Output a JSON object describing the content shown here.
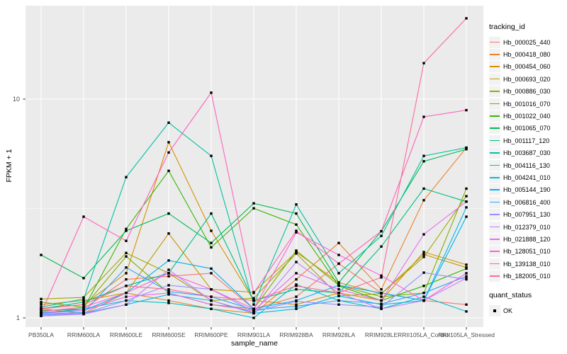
{
  "figure": {
    "x_axis_title": "sample_name",
    "y_axis_title": "FPKM + 1",
    "legend_tracking_title": "tracking_id",
    "legend_quant_title": "quant_status",
    "quant_items": [
      {
        "label": "OK",
        "marker": "black-square"
      }
    ]
  },
  "chart_data": {
    "type": "line",
    "title": "",
    "xlabel": "sample_name",
    "ylabel": "FPKM + 1",
    "x_type": "categorical",
    "y_scale": "log10",
    "ylim": [
      0.92,
      27
    ],
    "y_tick_values": [
      1,
      10
    ],
    "y_tick_labels": [
      "1",
      "10"
    ],
    "y_minor_gridlines": [
      3.162
    ],
    "grid": true,
    "panel_background": "#EBEBEB",
    "gridline_color": "#FFFFFF",
    "point_color": "#000000",
    "legend_position": "right",
    "categories": [
      "PB350LA",
      "RRIM600LA",
      "RRIM600LE",
      "RRIM600SE",
      "RRIM600PE",
      "RRIM901LA",
      "RRIM928BA",
      "RRIM928LA",
      "RRIM928LE",
      "RRII105LA_Control",
      "RRII105LA_Stressed"
    ],
    "series": [
      {
        "name": "Hb_000025_440",
        "color": "#F8766D",
        "values": [
          1.05,
          1.1,
          1.5,
          1.55,
          1.6,
          1.1,
          1.25,
          1.77,
          1.3,
          1.2,
          1.15
        ]
      },
      {
        "name": "Hb_000418_080",
        "color": "#EA8331",
        "values": [
          1.1,
          1.05,
          1.3,
          1.2,
          1.1,
          1.05,
          1.5,
          2.2,
          1.35,
          3.45,
          6.0
        ]
      },
      {
        "name": "Hb_000454_060",
        "color": "#D89000",
        "values": [
          1.1,
          1.15,
          1.6,
          6.35,
          2.5,
          1.2,
          1.15,
          1.3,
          1.2,
          2.0,
          1.75
        ]
      },
      {
        "name": "Hb_000693_020",
        "color": "#C09B00",
        "values": [
          1.15,
          1.2,
          1.3,
          2.43,
          1.35,
          1.31,
          2.0,
          1.45,
          1.29,
          1.95,
          1.7
        ]
      },
      {
        "name": "Hb_000886_030",
        "color": "#A3A500",
        "values": [
          1.22,
          1.24,
          1.98,
          1.6,
          1.2,
          1.23,
          1.97,
          1.26,
          1.29,
          1.9,
          3.6
        ]
      },
      {
        "name": "Hb_001016_070",
        "color": "#7CAE00",
        "values": [
          1.18,
          1.12,
          1.91,
          1.3,
          1.15,
          1.1,
          2.03,
          1.41,
          1.25,
          1.3,
          3.9
        ]
      },
      {
        "name": "Hb_001022_040",
        "color": "#39B600",
        "values": [
          1.08,
          1.1,
          2.55,
          4.7,
          2.1,
          3.17,
          2.67,
          1.4,
          1.2,
          1.4,
          1.68
        ]
      },
      {
        "name": "Hb_001065_070",
        "color": "#00BB4E",
        "values": [
          1.94,
          1.52,
          2.5,
          3.0,
          2.2,
          3.34,
          3.0,
          1.45,
          2.49,
          5.2,
          5.9
        ]
      },
      {
        "name": "Hb_001117_120",
        "color": "#00BF7D",
        "values": [
          1.1,
          1.18,
          1.4,
          1.6,
          3.0,
          1.2,
          1.35,
          1.3,
          2.12,
          3.9,
          3.4
        ]
      },
      {
        "name": "Hb_003687_030",
        "color": "#00C1A3",
        "values": [
          1.12,
          1.22,
          4.4,
          7.8,
          5.5,
          1.15,
          3.3,
          1.6,
          2.37,
          5.5,
          6.0
        ]
      },
      {
        "name": "Hb_004116_130",
        "color": "#00BFC4",
        "values": [
          1.05,
          1.1,
          1.2,
          1.17,
          1.1,
          1.0,
          1.42,
          1.2,
          1.1,
          1.25,
          1.07
        ]
      },
      {
        "name": "Hb_004241_010",
        "color": "#00BAE0",
        "values": [
          1.02,
          1.05,
          1.15,
          1.28,
          1.2,
          1.05,
          1.1,
          1.26,
          1.15,
          1.2,
          3.2
        ]
      },
      {
        "name": "Hb_005144_190",
        "color": "#00B0F6",
        "values": [
          1.06,
          1.08,
          1.3,
          1.83,
          1.68,
          1.1,
          1.2,
          1.41,
          1.3,
          1.2,
          2.9
        ]
      },
      {
        "name": "Hb_006816_400",
        "color": "#35A2FF",
        "values": [
          1.04,
          1.06,
          1.7,
          1.32,
          1.25,
          1.09,
          1.13,
          1.2,
          1.16,
          1.3,
          1.55
        ]
      },
      {
        "name": "Hb_007951_130",
        "color": "#9590FF",
        "values": [
          1.03,
          1.05,
          1.2,
          1.41,
          1.35,
          1.07,
          1.19,
          1.15,
          1.12,
          1.61,
          1.5
        ]
      },
      {
        "name": "Hb_012379_010",
        "color": "#C77CFF",
        "values": [
          1.02,
          1.04,
          1.15,
          1.66,
          1.2,
          1.06,
          1.8,
          1.3,
          1.1,
          1.2,
          1.52
        ]
      },
      {
        "name": "Hb_021888_120",
        "color": "#E76BF3",
        "values": [
          1.05,
          1.08,
          1.25,
          1.3,
          1.15,
          1.08,
          1.6,
          1.35,
          1.2,
          2.41,
          3.4
        ]
      },
      {
        "name": "Hb_128051_010",
        "color": "#FA62DB",
        "values": [
          1.07,
          1.12,
          1.3,
          1.6,
          1.35,
          1.1,
          2.46,
          1.94,
          1.56,
          1.2,
          1.6
        ]
      },
      {
        "name": "Hb_139138_010",
        "color": "#FF62BC",
        "values": [
          1.05,
          2.9,
          2.25,
          5.7,
          10.7,
          1.3,
          2.5,
          1.77,
          2.49,
          8.3,
          8.9
        ]
      },
      {
        "name": "Hb_182005_010",
        "color": "#FF6A98",
        "values": [
          1.1,
          1.15,
          1.4,
          1.35,
          1.25,
          1.2,
          1.4,
          1.3,
          1.53,
          14.6,
          23.4
        ]
      }
    ]
  }
}
